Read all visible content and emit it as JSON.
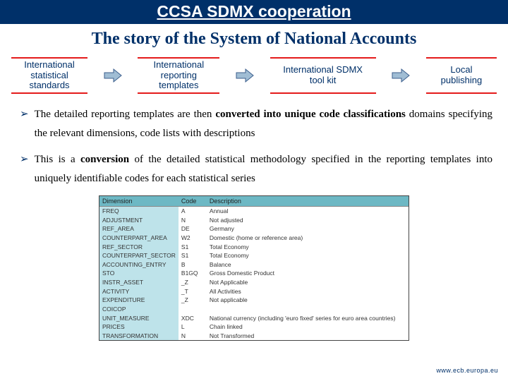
{
  "colors": {
    "navy": "#003069",
    "red": "#e41b1b",
    "arrow_fill": "#a0bdd4",
    "arrow_stroke": "#3b5e8c",
    "table_header_bg": "#6db8c4",
    "table_dim_bg": "#bee3ea"
  },
  "header": {
    "title": "CCSA SDMX cooperation"
  },
  "slide_title": "The story of the System of National Accounts",
  "flow": {
    "type": "flowchart",
    "nodes": [
      {
        "id": "b1",
        "label_lines": [
          "International",
          "statistical",
          "standards"
        ]
      },
      {
        "id": "b2",
        "label_lines": [
          "International",
          "reporting",
          "templates"
        ]
      },
      {
        "id": "b3",
        "label_lines": [
          "International SDMX",
          "tool kit"
        ]
      },
      {
        "id": "b4",
        "label_lines": [
          "Local",
          "publishing"
        ]
      }
    ],
    "arrow": {
      "fill": "#a0bdd4",
      "stroke": "#3b5e8c"
    }
  },
  "bullets": [
    {
      "spans": [
        {
          "t": "The detailed reporting templates are then "
        },
        {
          "t": "converted into unique code classifications",
          "bold": true
        },
        {
          "t": " domains specifying the relevant dimensions, code lists with descriptions"
        }
      ]
    },
    {
      "spans": [
        {
          "t": "This is a "
        },
        {
          "t": "conversion",
          "bold": true
        },
        {
          "t": " of the detailed statistical methodology specified in the reporting templates into uniquely identifiable codes for each statistical series"
        }
      ]
    }
  ],
  "table": {
    "columns": [
      "Dimension",
      "Code",
      "Description"
    ],
    "rows": [
      [
        "FREQ",
        "A",
        "Annual"
      ],
      [
        "ADJUSTMENT",
        "N",
        "Not adjusted"
      ],
      [
        "REF_AREA",
        "DE",
        "Germany"
      ],
      [
        "COUNTERPART_AREA",
        "W2",
        "Domestic (home or reference area)"
      ],
      [
        "REF_SECTOR",
        "S1",
        "Total Economy"
      ],
      [
        "COUNTERPART_SECTOR",
        "S1",
        "Total Economy"
      ],
      [
        "ACCOUNTING_ENTRY",
        "B",
        "Balance"
      ],
      [
        "STO",
        "B1GQ",
        "Gross Domestic Product"
      ],
      [
        "INSTR_ASSET",
        "_Z",
        "Not Applicable"
      ],
      [
        "ACTIVITY",
        "_T",
        "All Activities"
      ],
      [
        "EXPENDITURE",
        "_Z",
        "Not applicable"
      ],
      [
        "COICOP",
        "",
        ""
      ],
      [
        "UNIT_MEASURE",
        "XDC",
        "National currency (including 'euro fixed' series for euro area countries)"
      ],
      [
        "PRICES",
        "L",
        "Chain linked"
      ],
      [
        "TRANSFORMATION",
        "N",
        "Not Transformed"
      ]
    ]
  },
  "footer": {
    "url": "www.ecb.europa.eu"
  },
  "rubric": ""
}
